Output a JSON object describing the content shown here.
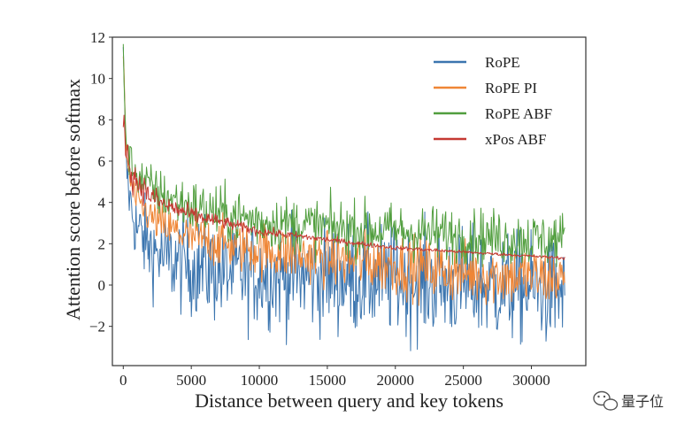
{
  "chart_data": {
    "type": "line",
    "title": "",
    "xlabel": "Distance between query and key tokens",
    "ylabel": "Attention score before softmax",
    "xlim": [
      -800,
      34000
    ],
    "ylim": [
      -3.9,
      12
    ],
    "xticks": [
      0,
      5000,
      10000,
      15000,
      20000,
      25000,
      30000
    ],
    "yticks": [
      -2,
      0,
      2,
      4,
      6,
      8,
      10,
      12
    ],
    "xtick_labels": [
      "0",
      "5000",
      "10000",
      "15000",
      "20000",
      "25000",
      "30000"
    ],
    "ytick_labels": [
      "−2",
      "0",
      "2",
      "4",
      "6",
      "8",
      "10",
      "12"
    ],
    "legend_position": "top-right",
    "series": [
      {
        "name": "RoPE",
        "color": "#3b75af",
        "x": [
          0,
          200,
          500,
          1000,
          2000,
          3000,
          5000,
          7500,
          10000,
          15000,
          20000,
          25000,
          30000,
          32500
        ],
        "values": [
          11.3,
          6.0,
          4.0,
          2.7,
          1.8,
          1.3,
          0.9,
          0.6,
          0.5,
          0.4,
          0.2,
          0.0,
          -0.2,
          -0.4
        ],
        "noise": [
          0.3,
          0.8,
          1.0,
          1.3,
          1.4,
          1.5,
          1.6,
          1.7,
          1.7,
          1.8,
          1.8,
          1.8,
          1.8,
          1.8
        ]
      },
      {
        "name": "RoPE PI",
        "color": "#ef8636",
        "x": [
          0,
          200,
          500,
          1000,
          2000,
          3000,
          5000,
          7500,
          10000,
          15000,
          20000,
          25000,
          30000,
          32500
        ],
        "values": [
          11.3,
          6.5,
          5.0,
          4.0,
          3.3,
          2.8,
          2.3,
          2.0,
          1.7,
          1.3,
          1.0,
          0.6,
          0.4,
          0.3
        ],
        "noise": [
          0.3,
          0.4,
          0.5,
          0.6,
          0.6,
          0.7,
          0.8,
          0.8,
          0.9,
          0.9,
          1.0,
          1.0,
          1.0,
          1.0
        ]
      },
      {
        "name": "RoPE ABF",
        "color": "#519e3e",
        "x": [
          0,
          200,
          500,
          1000,
          2000,
          3000,
          5000,
          7500,
          10000,
          15000,
          20000,
          25000,
          30000,
          32500
        ],
        "values": [
          11.3,
          7.0,
          6.0,
          5.4,
          4.7,
          4.3,
          3.8,
          3.4,
          3.1,
          2.8,
          2.6,
          2.4,
          2.2,
          2.2
        ],
        "noise": [
          0.3,
          0.5,
          0.6,
          0.7,
          0.8,
          0.8,
          0.9,
          0.9,
          0.9,
          0.9,
          0.9,
          0.9,
          0.9,
          0.9
        ]
      },
      {
        "name": "xPos ABF",
        "color": "#c53932",
        "x": [
          0,
          200,
          500,
          1000,
          2000,
          3000,
          5000,
          7500,
          10000,
          15000,
          20000,
          25000,
          30000,
          32500
        ],
        "values": [
          8.2,
          6.8,
          5.6,
          5.0,
          4.3,
          3.9,
          3.4,
          3.0,
          2.6,
          2.2,
          1.8,
          1.6,
          1.4,
          1.3
        ],
        "noise": [
          0.4,
          0.6,
          0.6,
          0.5,
          0.4,
          0.35,
          0.3,
          0.2,
          0.15,
          0.1,
          0.07,
          0.05,
          0.05,
          0.05
        ]
      }
    ]
  },
  "watermark": {
    "text": "量子位"
  }
}
